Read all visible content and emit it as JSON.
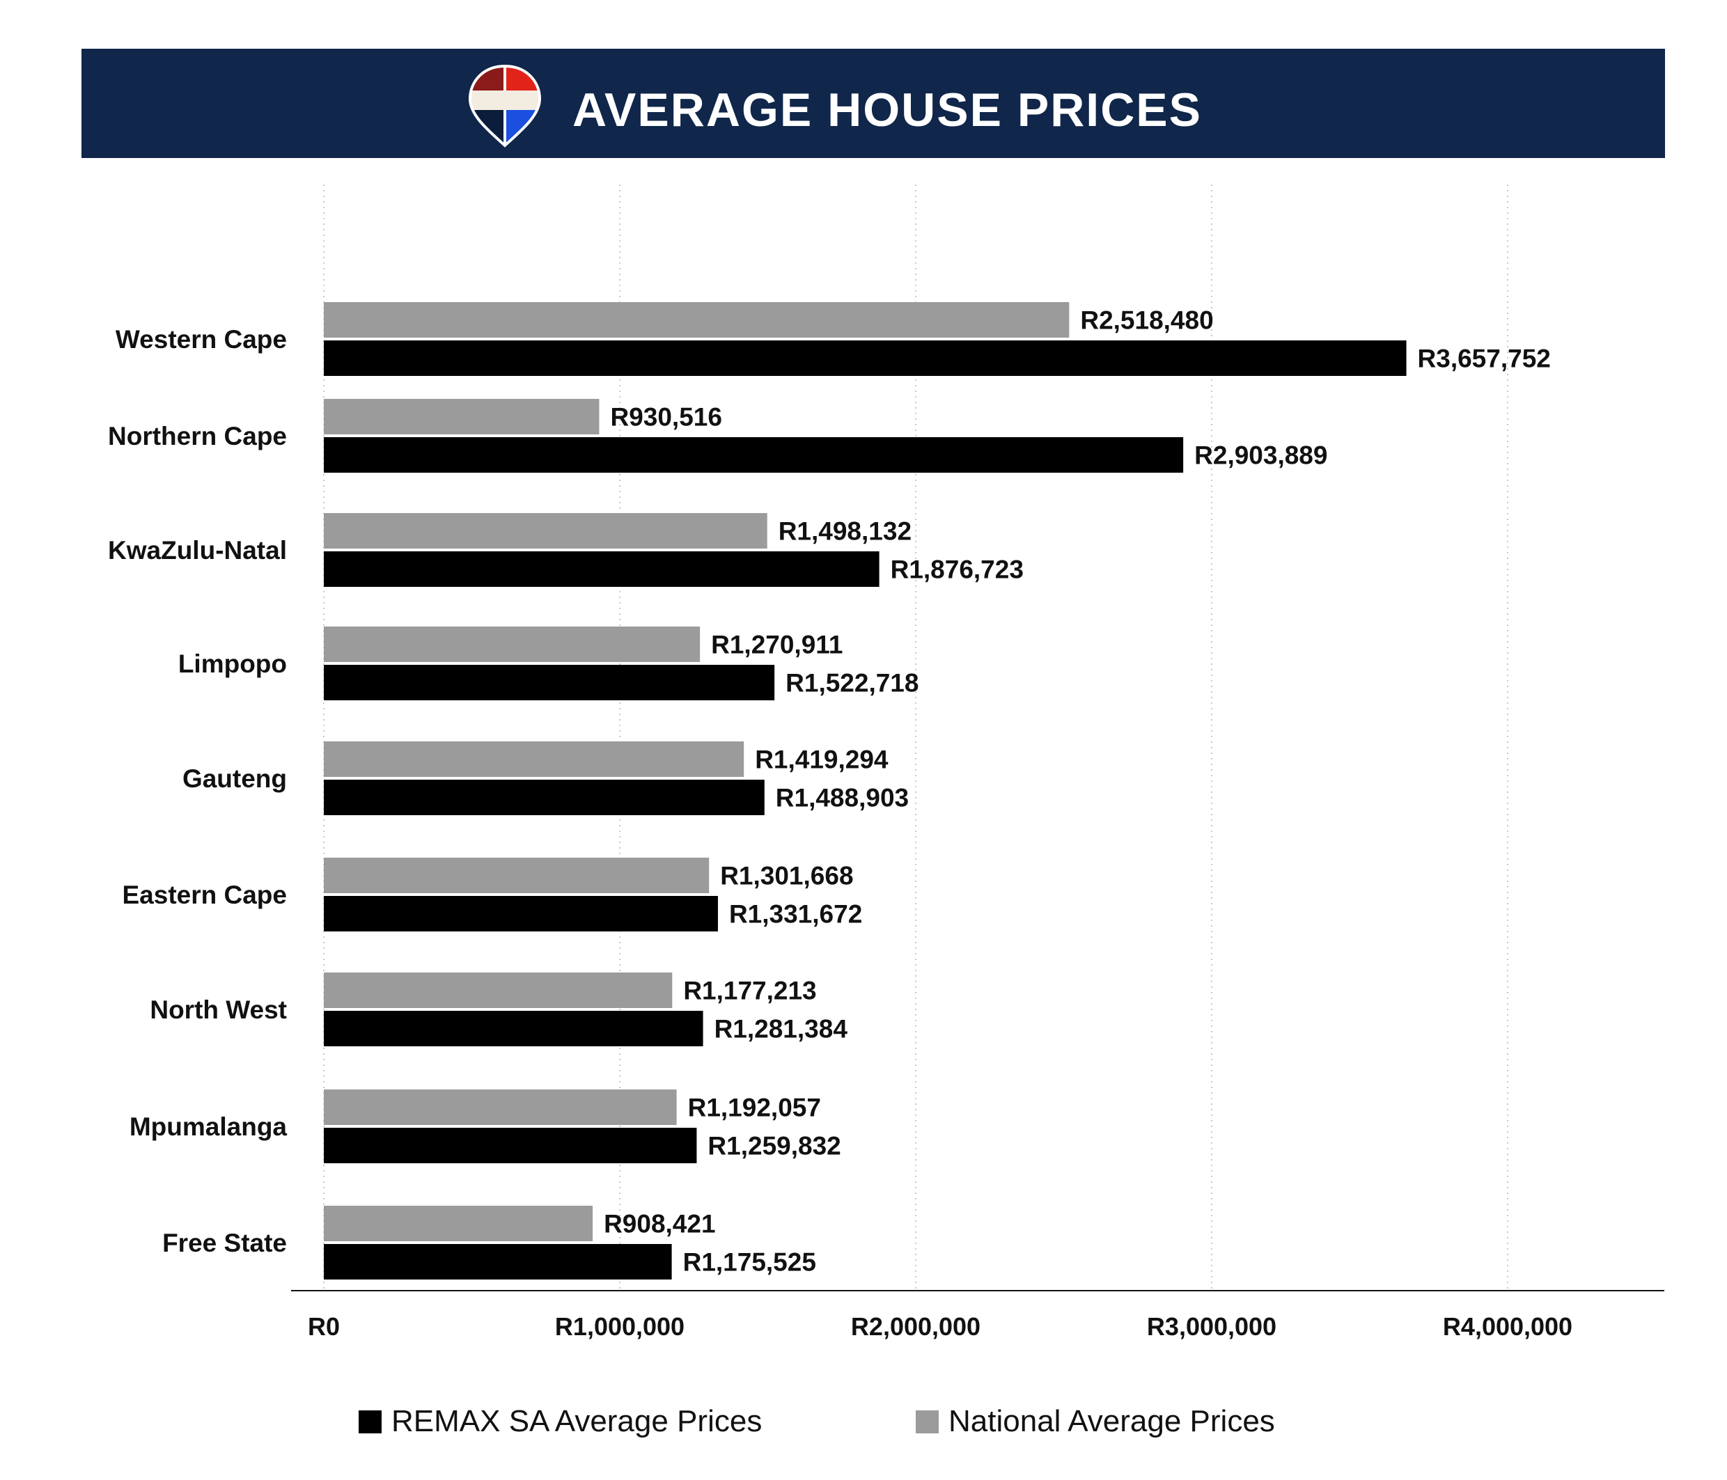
{
  "title": "AVERAGE HOUSE PRICES",
  "logo": {
    "icon": "remax-balloon-icon",
    "colors": [
      "#8b1a1a",
      "#e2231a",
      "#f3ece1",
      "#0c1d3c",
      "#1a4fe0"
    ]
  },
  "colors": {
    "banner": "#10264a",
    "remax": "#000000",
    "national": "#9b9b9b",
    "grid": "#c8c8c8"
  },
  "chart_data": {
    "type": "bar",
    "orientation": "horizontal",
    "categories": [
      "Western Cape",
      "Northern Cape",
      "KwaZulu-Natal",
      "Limpopo",
      "Gauteng",
      "Eastern Cape",
      "North West",
      "Mpumalanga",
      "Free State"
    ],
    "series": [
      {
        "name": "National Average Prices",
        "color": "#9b9b9b",
        "values": [
          2518480,
          930516,
          1498132,
          1270911,
          1419294,
          1301668,
          1177213,
          1192057,
          908421
        ],
        "labels": [
          "R2,518,480",
          "R930,516",
          "R1,498,132",
          "R1,270,911",
          "R1,419,294",
          "R1,301,668",
          "R1,177,213",
          "R1,192,057",
          "R908,421"
        ]
      },
      {
        "name": "REMAX SA Average Prices",
        "color": "#000000",
        "values": [
          3657752,
          2903889,
          1876723,
          1522718,
          1488903,
          1331672,
          1281384,
          1259832,
          1175525
        ],
        "labels": [
          "R3,657,752",
          "R2,903,889",
          "R1,876,723",
          "R1,522,718",
          "R1,488,903",
          "R1,331,672",
          "R1,281,384",
          "R1,259,832",
          "R1,175,525"
        ]
      }
    ],
    "x_ticks": [
      0,
      1000000,
      2000000,
      3000000,
      4000000
    ],
    "x_tick_labels": [
      "R0",
      "R1,000,000",
      "R2,000,000",
      "R3,000,000",
      "R4,000,000"
    ],
    "xlim": [
      0,
      4500000
    ],
    "grid": "vertical dotted",
    "legend": [
      {
        "name": "REMAX SA Average Prices",
        "color": "#000000"
      },
      {
        "name": "National Average Prices",
        "color": "#9b9b9b"
      }
    ],
    "legend_position": "bottom"
  }
}
